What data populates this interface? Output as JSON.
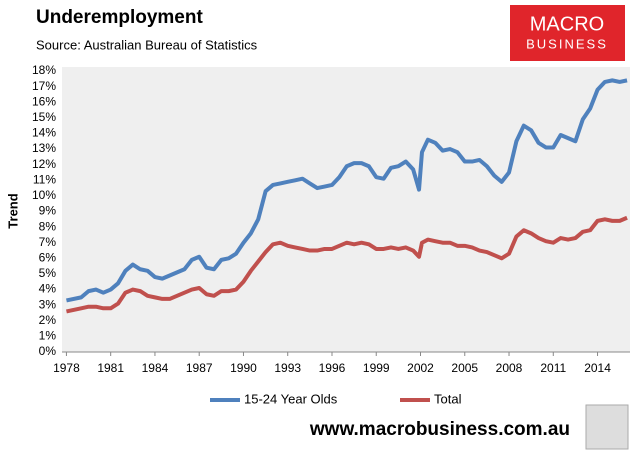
{
  "chart_data": {
    "type": "line",
    "title": "Underemployment",
    "subtitle": "Source: Australian Bureau of Statistics",
    "y_label": "Trend",
    "logo": [
      "MACRO",
      "BUSINESS"
    ],
    "footer": "www.macrobusiness.com.au",
    "x": [
      1978,
      1979,
      1979.5,
      1980,
      1980.5,
      1981,
      1981.5,
      1982,
      1982.5,
      1983,
      1983.5,
      1984,
      1984.5,
      1985,
      1985.5,
      1986,
      1986.5,
      1987,
      1987.5,
      1988,
      1988.5,
      1989,
      1989.5,
      1990,
      1990.5,
      1991,
      1991.5,
      1992,
      1992.5,
      1993,
      1993.5,
      1994,
      1994.5,
      1995,
      1995.5,
      1996,
      1996.5,
      1997,
      1997.5,
      1998,
      1998.5,
      1999,
      1999.5,
      2000,
      2000.5,
      2001,
      2001.5,
      2001.9,
      2002.1,
      2002.5,
      2003,
      2003.5,
      2004,
      2004.5,
      2005,
      2005.5,
      2006,
      2006.5,
      2007,
      2007.5,
      2008,
      2008.5,
      2009,
      2009.5,
      2010,
      2010.5,
      2011,
      2011.5,
      2012,
      2012.5,
      2013,
      2013.5,
      2014,
      2014.5,
      2015,
      2015.5,
      2016
    ],
    "series": [
      {
        "name": "15-24 Year Olds",
        "color": "#4f81bd",
        "values": [
          3.3,
          3.5,
          3.9,
          4.0,
          3.8,
          4.0,
          4.4,
          5.2,
          5.6,
          5.3,
          5.2,
          4.8,
          4.7,
          4.9,
          5.1,
          5.3,
          5.9,
          6.1,
          5.4,
          5.3,
          5.9,
          6.0,
          6.3,
          7.0,
          7.6,
          8.5,
          10.3,
          10.7,
          10.8,
          10.9,
          11.0,
          11.1,
          10.8,
          10.5,
          10.6,
          10.7,
          11.2,
          11.9,
          12.1,
          12.1,
          11.9,
          11.2,
          11.1,
          11.8,
          11.9,
          12.2,
          11.7,
          10.4,
          12.8,
          13.6,
          13.4,
          12.9,
          13.0,
          12.8,
          12.2,
          12.2,
          12.3,
          11.9,
          11.3,
          10.9,
          11.5,
          13.5,
          14.5,
          14.2,
          13.4,
          13.1,
          13.1,
          13.9,
          13.7,
          13.5,
          14.9,
          15.6,
          16.8,
          17.3,
          17.4,
          17.3,
          17.4
        ]
      },
      {
        "name": "Total",
        "color": "#c0504d",
        "values": [
          2.6,
          2.8,
          2.9,
          2.9,
          2.8,
          2.8,
          3.1,
          3.8,
          4.0,
          3.9,
          3.6,
          3.5,
          3.4,
          3.4,
          3.6,
          3.8,
          4.0,
          4.1,
          3.7,
          3.6,
          3.9,
          3.9,
          4.0,
          4.5,
          5.2,
          5.8,
          6.4,
          6.9,
          7.0,
          6.8,
          6.7,
          6.6,
          6.5,
          6.5,
          6.6,
          6.6,
          6.8,
          7.0,
          6.9,
          7.0,
          6.9,
          6.6,
          6.6,
          6.7,
          6.6,
          6.7,
          6.5,
          6.1,
          7.0,
          7.2,
          7.1,
          7.0,
          7.0,
          6.8,
          6.8,
          6.7,
          6.5,
          6.4,
          6.2,
          6.0,
          6.3,
          7.4,
          7.8,
          7.6,
          7.3,
          7.1,
          7.0,
          7.3,
          7.2,
          7.3,
          7.7,
          7.8,
          8.4,
          8.5,
          8.4,
          8.4,
          8.6
        ]
      }
    ],
    "xlim": [
      1977.7,
      2016.2
    ],
    "xticks": [
      1978,
      1981,
      1984,
      1987,
      1990,
      1993,
      1996,
      1999,
      2002,
      2005,
      2008,
      2011,
      2014
    ],
    "ylim": [
      0,
      18
    ],
    "yticks": [
      {
        "value": 0,
        "label": "0%"
      },
      {
        "value": 1,
        "label": "1%"
      },
      {
        "value": 2,
        "label": "2%"
      },
      {
        "value": 3,
        "label": "3%"
      },
      {
        "value": 4,
        "label": "4%"
      },
      {
        "value": 5,
        "label": "5%"
      },
      {
        "value": 6,
        "label": "6%"
      },
      {
        "value": 7,
        "label": "7%"
      },
      {
        "value": 8,
        "label": "8%"
      },
      {
        "value": 9,
        "label": "9%"
      },
      {
        "value": 10,
        "label": "10%"
      },
      {
        "value": 11,
        "label": "11%"
      },
      {
        "value": 12,
        "label": "12%"
      },
      {
        "value": 13,
        "label": "13%"
      },
      {
        "value": 14,
        "label": "14%"
      },
      {
        "value": 15,
        "label": "15%"
      },
      {
        "value": 16,
        "label": "16%"
      },
      {
        "value": 17,
        "label": "17%"
      },
      {
        "value": 18,
        "label": "18%"
      }
    ],
    "grid": false,
    "plot_background": "#efefef"
  }
}
